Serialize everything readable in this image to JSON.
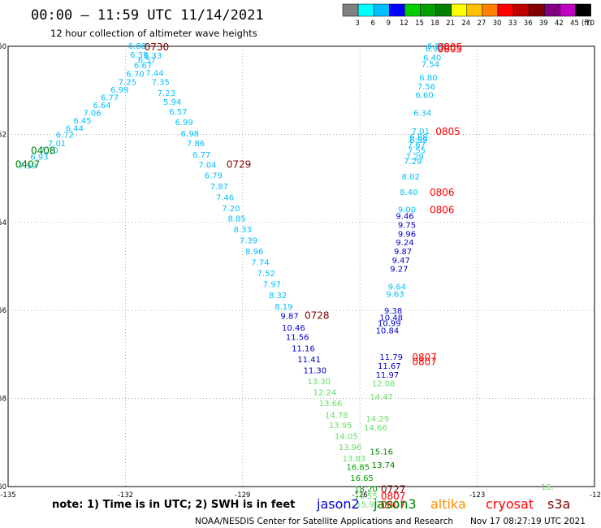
{
  "header": {
    "title": "00:00 – 11:59 UTC 11/14/2021",
    "subtitle": "12 hour collection of altimeter wave heights"
  },
  "colorbar": {
    "unit": "(ft)",
    "ticks": [
      "3",
      "6",
      "9",
      "12",
      "15",
      "18",
      "21",
      "24",
      "27",
      "30",
      "33",
      "36",
      "39",
      "42",
      "45",
      "70"
    ],
    "colors": [
      "#808080",
      "#00ffff",
      "#00bfff",
      "#0000ff",
      "#00d000",
      "#00a000",
      "#008000",
      "#ffff00",
      "#ffc000",
      "#ff8000",
      "#ff0000",
      "#c00000",
      "#800000",
      "#800080",
      "#c000c0",
      "#000000"
    ]
  },
  "chart_data": {
    "type": "scatter",
    "title": "00:00 – 11:59 UTC 11/14/2021",
    "subtitle": "12 hour collection of altimeter wave heights",
    "xlim": [
      -135,
      -120
    ],
    "ylim": [
      -60,
      -50
    ],
    "xticks": [
      "-135",
      "-132",
      "-129",
      "-126",
      "-123",
      "-12"
    ],
    "yticks": [
      "-50",
      "-52",
      "-54",
      "-56",
      "-58",
      "-60"
    ],
    "grid": true,
    "series": [
      {
        "name": "jason2",
        "color": "#0000cc"
      },
      {
        "name": "jason3",
        "color": "#008000"
      },
      {
        "name": "altika",
        "color": "#ff8c00"
      },
      {
        "name": "cryosat",
        "color": "#ff0000"
      },
      {
        "name": "s3a",
        "color": "#800000"
      }
    ],
    "points": [
      {
        "lon": -134.5,
        "lat": -52.7,
        "label": "7.59",
        "color": "#00bfff"
      },
      {
        "lon": -134.2,
        "lat": -52.5,
        "label": "6.93",
        "color": "#00bfff"
      },
      {
        "lon": -133.95,
        "lat": -52.35,
        "label": "7.10",
        "color": "#00bfff"
      },
      {
        "lon": -133.75,
        "lat": -52.2,
        "label": "7.01",
        "color": "#00bfff"
      },
      {
        "lon": -133.55,
        "lat": -52.0,
        "label": "6.72",
        "color": "#00bfff"
      },
      {
        "lon": -133.3,
        "lat": -51.85,
        "label": "6.44",
        "color": "#00bfff"
      },
      {
        "lon": -133.1,
        "lat": -51.68,
        "label": "6.45",
        "color": "#00bfff"
      },
      {
        "lon": -132.85,
        "lat": -51.5,
        "label": "7.06",
        "color": "#00bfff"
      },
      {
        "lon": -132.6,
        "lat": -51.33,
        "label": "6.64",
        "color": "#00bfff"
      },
      {
        "lon": -132.4,
        "lat": -51.15,
        "label": "6.77",
        "color": "#00bfff"
      },
      {
        "lon": -132.15,
        "lat": -50.98,
        "label": "6.99",
        "color": "#00bfff"
      },
      {
        "lon": -131.95,
        "lat": -50.8,
        "label": "7.25",
        "color": "#00bfff"
      },
      {
        "lon": -131.75,
        "lat": -50.62,
        "label": "6.70",
        "color": "#00bfff"
      },
      {
        "lon": -131.55,
        "lat": -50.42,
        "label": "6.67",
        "color": "#00bfff"
      },
      {
        "lon": -131.45,
        "lat": -50.3,
        "label": "6.57",
        "color": "#00bfff"
      },
      {
        "lon": -131.3,
        "lat": -50.2,
        "label": "6.33",
        "color": "#00bfff"
      },
      {
        "lon": -131.65,
        "lat": -50.18,
        "label": "6.39",
        "color": "#00bfff"
      },
      {
        "lon": -131.7,
        "lat": -49.98,
        "label": "6.88",
        "color": "#00bfff"
      },
      {
        "lon": -131.25,
        "lat": -50.6,
        "label": "7.44",
        "color": "#00bfff"
      },
      {
        "lon": -131.1,
        "lat": -50.8,
        "label": "7.35",
        "color": "#00bfff"
      },
      {
        "lon": -130.95,
        "lat": -51.05,
        "label": "7.23",
        "color": "#00bfff"
      },
      {
        "lon": -130.8,
        "lat": -51.25,
        "label": "5.94",
        "color": "#00bfff"
      },
      {
        "lon": -130.65,
        "lat": -51.48,
        "label": "6.57",
        "color": "#00bfff"
      },
      {
        "lon": -130.5,
        "lat": -51.72,
        "label": "6.99",
        "color": "#00bfff"
      },
      {
        "lon": -130.35,
        "lat": -51.97,
        "label": "6.98",
        "color": "#00bfff"
      },
      {
        "lon": -130.2,
        "lat": -52.2,
        "label": "7.86",
        "color": "#00bfff"
      },
      {
        "lon": -130.05,
        "lat": -52.45,
        "label": "6.77",
        "color": "#00bfff"
      },
      {
        "lon": -129.9,
        "lat": -52.68,
        "label": "7.04",
        "color": "#00bfff"
      },
      {
        "lon": -129.75,
        "lat": -52.92,
        "label": "6.79",
        "color": "#00bfff"
      },
      {
        "lon": -129.6,
        "lat": -53.17,
        "label": "7.87",
        "color": "#00bfff"
      },
      {
        "lon": -129.45,
        "lat": -53.42,
        "label": "7.46",
        "color": "#00bfff"
      },
      {
        "lon": -129.3,
        "lat": -53.67,
        "label": "7.20",
        "color": "#00bfff"
      },
      {
        "lon": -129.15,
        "lat": -53.9,
        "label": "8.85",
        "color": "#00bfff"
      },
      {
        "lon": -129.0,
        "lat": -54.15,
        "label": "8.33",
        "color": "#00bfff"
      },
      {
        "lon": -128.85,
        "lat": -54.4,
        "label": "7.39",
        "color": "#00bfff"
      },
      {
        "lon": -128.7,
        "lat": -54.65,
        "label": "8.96",
        "color": "#00bfff"
      },
      {
        "lon": -128.55,
        "lat": -54.9,
        "label": "7.74",
        "color": "#00bfff"
      },
      {
        "lon": -128.4,
        "lat": -55.15,
        "label": "7.52",
        "color": "#00bfff"
      },
      {
        "lon": -128.25,
        "lat": -55.4,
        "label": "7.97",
        "color": "#00bfff"
      },
      {
        "lon": -128.1,
        "lat": -55.65,
        "label": "8.32",
        "color": "#00bfff"
      },
      {
        "lon": -127.95,
        "lat": -55.9,
        "label": "8.19",
        "color": "#00bfff"
      },
      {
        "lon": -127.8,
        "lat": -56.12,
        "label": "9.87",
        "color": "#0000cc"
      },
      {
        "lon": -127.7,
        "lat": -56.38,
        "label": "10.46",
        "color": "#0000cc"
      },
      {
        "lon": -127.6,
        "lat": -56.6,
        "label": "11.56",
        "color": "#0000cc"
      },
      {
        "lon": -127.45,
        "lat": -56.85,
        "label": "11.16",
        "color": "#0000cc"
      },
      {
        "lon": -127.3,
        "lat": -57.1,
        "label": "11.41",
        "color": "#0000cc"
      },
      {
        "lon": -127.15,
        "lat": -57.35,
        "label": "11.30",
        "color": "#0000cc"
      },
      {
        "lon": -127.05,
        "lat": -57.6,
        "label": "13.30",
        "color": "#66dd66"
      },
      {
        "lon": -126.9,
        "lat": -57.85,
        "label": "12.24",
        "color": "#66dd66"
      },
      {
        "lon": -126.75,
        "lat": -58.1,
        "label": "13.66",
        "color": "#66dd66"
      },
      {
        "lon": -126.6,
        "lat": -58.37,
        "label": "14.78",
        "color": "#66dd66"
      },
      {
        "lon": -126.5,
        "lat": -58.6,
        "label": "13.95",
        "color": "#66dd66"
      },
      {
        "lon": -126.35,
        "lat": -58.85,
        "label": "14.05",
        "color": "#66dd66"
      },
      {
        "lon": -126.25,
        "lat": -59.1,
        "label": "13.96",
        "color": "#66dd66"
      },
      {
        "lon": -126.15,
        "lat": -59.35,
        "label": "13.83",
        "color": "#66dd66"
      },
      {
        "lon": -126.05,
        "lat": -59.55,
        "label": "16.85",
        "color": "#00a000"
      },
      {
        "lon": -125.95,
        "lat": -59.8,
        "label": "16.65",
        "color": "#00a000"
      },
      {
        "lon": -125.85,
        "lat": -60.05,
        "label": "18.20",
        "color": "#00a000"
      },
      {
        "lon": -125.85,
        "lat": -60.2,
        "label": "16.55",
        "color": "#66dd66"
      },
      {
        "lon": -125.8,
        "lat": -60.4,
        "label": "15.95",
        "color": "#66dd66"
      },
      {
        "lon": -125.45,
        "lat": -59.2,
        "label": "15.16",
        "color": "#008000"
      },
      {
        "lon": -125.4,
        "lat": -59.5,
        "label": "13.74",
        "color": "#008000"
      },
      {
        "lon": -125.6,
        "lat": -58.65,
        "label": "14.66",
        "color": "#66dd66"
      },
      {
        "lon": -125.55,
        "lat": -58.45,
        "label": "14.29",
        "color": "#66dd66"
      },
      {
        "lon": -125.45,
        "lat": -57.95,
        "label": "14.47",
        "color": "#66dd66"
      },
      {
        "lon": -125.4,
        "lat": -57.65,
        "label": "12.08",
        "color": "#66dd66"
      },
      {
        "lon": -125.3,
        "lat": -57.45,
        "label": "11.97",
        "color": "#0000cc"
      },
      {
        "lon": -125.25,
        "lat": -57.25,
        "label": "11.67",
        "color": "#0000cc"
      },
      {
        "lon": -125.2,
        "lat": -57.05,
        "label": "11.79",
        "color": "#0000cc"
      },
      {
        "lon": -125.3,
        "lat": -56.45,
        "label": "10.84",
        "color": "#0000cc"
      },
      {
        "lon": -125.25,
        "lat": -56.28,
        "label": "10.99",
        "color": "#0000cc"
      },
      {
        "lon": -125.2,
        "lat": -56.15,
        "label": "10.48",
        "color": "#0000cc"
      },
      {
        "lon": -125.15,
        "lat": -56.0,
        "label": "9.38",
        "color": "#0000cc"
      },
      {
        "lon": -125.1,
        "lat": -55.62,
        "label": "9.63",
        "color": "#00bfff"
      },
      {
        "lon": -125.05,
        "lat": -55.45,
        "label": "9.64",
        "color": "#00bfff"
      },
      {
        "lon": -125.0,
        "lat": -55.05,
        "label": "9.27",
        "color": "#0000cc"
      },
      {
        "lon": -124.95,
        "lat": -54.85,
        "label": "9.47",
        "color": "#0000cc"
      },
      {
        "lon": -124.9,
        "lat": -54.65,
        "label": "9.87",
        "color": "#0000cc"
      },
      {
        "lon": -124.85,
        "lat": -54.45,
        "label": "9.24",
        "color": "#0000cc"
      },
      {
        "lon": -124.8,
        "lat": -54.25,
        "label": "9.96",
        "color": "#0000cc"
      },
      {
        "lon": -124.8,
        "lat": -54.05,
        "label": "9.75",
        "color": "#0000cc"
      },
      {
        "lon": -124.85,
        "lat": -53.85,
        "label": "9.46",
        "color": "#0000cc"
      },
      {
        "lon": -124.8,
        "lat": -53.7,
        "label": "9.00",
        "color": "#00bfff"
      },
      {
        "lon": -124.75,
        "lat": -53.3,
        "label": "8.40",
        "color": "#00bfff"
      },
      {
        "lon": -124.7,
        "lat": -52.95,
        "label": "8.02",
        "color": "#00bfff"
      },
      {
        "lon": -124.65,
        "lat": -52.6,
        "label": "7.29",
        "color": "#00bfff"
      },
      {
        "lon": -124.6,
        "lat": -52.5,
        "label": "7.29",
        "color": "#00bfff"
      },
      {
        "lon": -124.55,
        "lat": -52.35,
        "label": "7.55",
        "color": "#00bfff"
      },
      {
        "lon": -124.55,
        "lat": -52.22,
        "label": "7.67",
        "color": "#00bfff"
      },
      {
        "lon": -124.5,
        "lat": -52.12,
        "label": "6.99",
        "color": "#00bfff"
      },
      {
        "lon": -124.5,
        "lat": -52.05,
        "label": "6.88",
        "color": "#00bfff"
      },
      {
        "lon": -124.45,
        "lat": -51.92,
        "label": "7.01",
        "color": "#00bfff"
      },
      {
        "lon": -124.4,
        "lat": -51.5,
        "label": "6.34",
        "color": "#00bfff"
      },
      {
        "lon": -124.35,
        "lat": -51.1,
        "label": "6.60",
        "color": "#00bfff"
      },
      {
        "lon": -124.3,
        "lat": -50.9,
        "label": "7.56",
        "color": "#00bfff"
      },
      {
        "lon": -124.25,
        "lat": -50.7,
        "label": "6.80",
        "color": "#00bfff"
      },
      {
        "lon": -124.2,
        "lat": -50.4,
        "label": "7.54",
        "color": "#00bfff"
      },
      {
        "lon": -124.15,
        "lat": -50.25,
        "label": "6.40",
        "color": "#00bfff"
      },
      {
        "lon": -124.1,
        "lat": -50.05,
        "label": "6.90",
        "color": "#00bfff"
      },
      {
        "lon": -124.05,
        "lat": -49.98,
        "label": "6.88",
        "color": "#00bfff"
      },
      {
        "lon": -121.2,
        "lat": -60.0,
        "label": "16.",
        "color": "#66dd66"
      }
    ],
    "annotations": [
      {
        "lon": -131.2,
        "lat": -50.0,
        "text": "0730",
        "color": "#800000"
      },
      {
        "lon": -134.1,
        "lat": -52.35,
        "text": "0408",
        "color": "#008000"
      },
      {
        "lon": -134.5,
        "lat": -52.67,
        "text": "0407",
        "color": "#008000"
      },
      {
        "lon": -129.1,
        "lat": -52.67,
        "text": "0729",
        "color": "#800000"
      },
      {
        "lon": -127.1,
        "lat": -56.1,
        "text": "0728",
        "color": "#800000"
      },
      {
        "lon": -123.7,
        "lat": -50.0,
        "text": "0805",
        "color": "#ff0000"
      },
      {
        "lon": -123.7,
        "lat": -50.05,
        "text": "0805",
        "color": "#ff0000"
      },
      {
        "lon": -123.75,
        "lat": -51.92,
        "text": "0805",
        "color": "#ff0000"
      },
      {
        "lon": -123.9,
        "lat": -53.3,
        "text": "0806",
        "color": "#ff0000"
      },
      {
        "lon": -123.9,
        "lat": -53.7,
        "text": "0806",
        "color": "#ff0000"
      },
      {
        "lon": -124.35,
        "lat": -57.05,
        "text": "0807",
        "color": "#ff0000"
      },
      {
        "lon": -124.35,
        "lat": -57.15,
        "text": "0807",
        "color": "#ff0000"
      },
      {
        "lon": -125.15,
        "lat": -60.05,
        "text": "0727",
        "color": "#800000"
      },
      {
        "lon": -125.15,
        "lat": -60.2,
        "text": "0807",
        "color": "#ff0000"
      },
      {
        "lon": -125.15,
        "lat": -60.4,
        "text": "0807",
        "color": "#ff0000"
      }
    ]
  },
  "footer": {
    "note": "note: 1) Time is in UTC; 2) SWH is in feet",
    "legend": [
      {
        "label": "jason2",
        "color": "#0000cc"
      },
      {
        "label": "jason3",
        "color": "#008000"
      },
      {
        "label": "altika",
        "color": "#ff8c00"
      },
      {
        "label": "cryosat",
        "color": "#ff0000"
      },
      {
        "label": "s3a",
        "color": "#800000"
      }
    ],
    "credit": "NOAA/NESDIS Center for Satellite Applications and Research",
    "timestamp": "Nov 17 08:27:19 UTC 2021"
  }
}
